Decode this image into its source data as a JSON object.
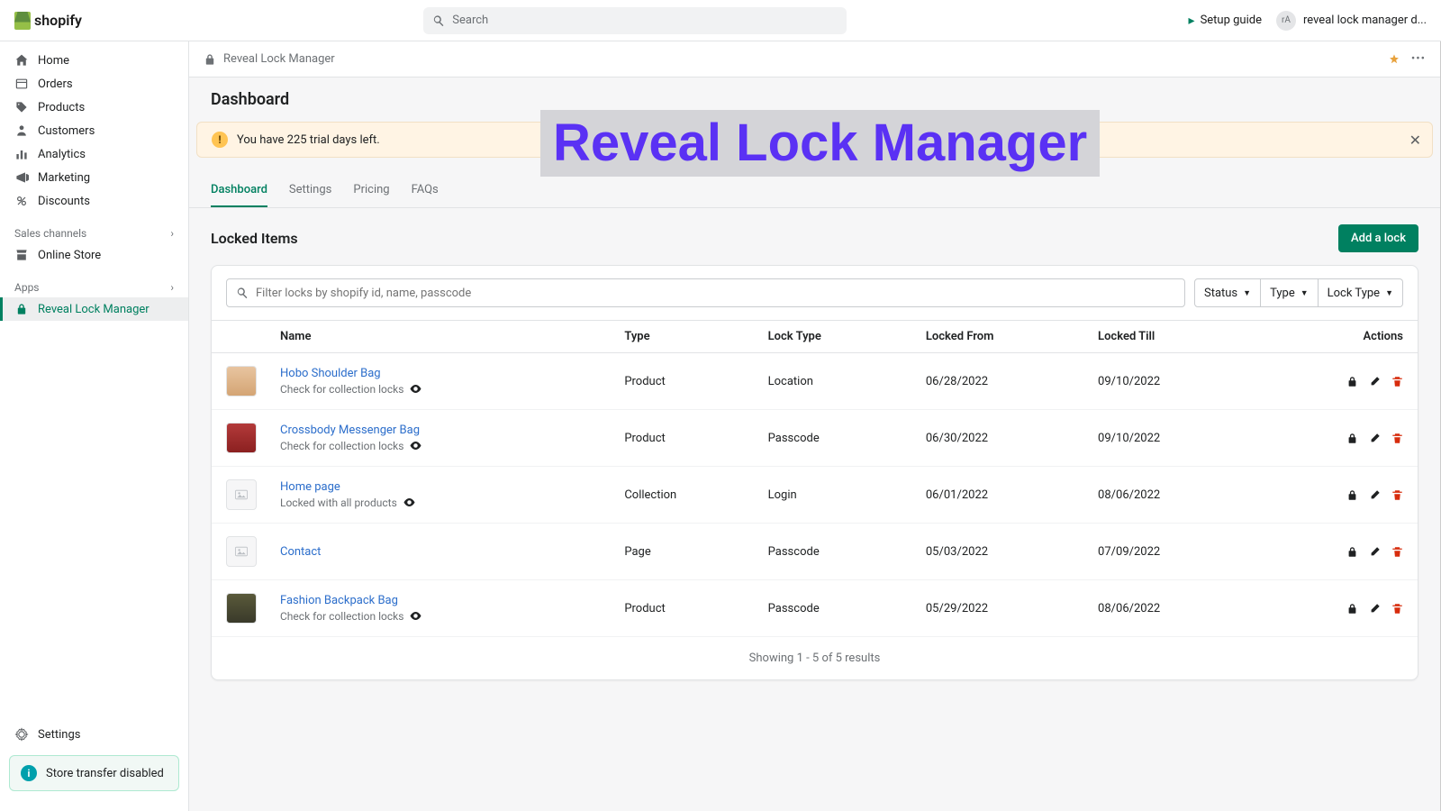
{
  "topbar": {
    "brand": "shopify",
    "search_placeholder": "Search",
    "setup_guide": "Setup guide",
    "user_initials": "rA",
    "user_name": "reveal lock manager d..."
  },
  "sidebar": {
    "items": [
      {
        "label": "Home"
      },
      {
        "label": "Orders"
      },
      {
        "label": "Products"
      },
      {
        "label": "Customers"
      },
      {
        "label": "Analytics"
      },
      {
        "label": "Marketing"
      },
      {
        "label": "Discounts"
      }
    ],
    "sales_channels_header": "Sales channels",
    "sales_channels": [
      {
        "label": "Online Store"
      }
    ],
    "apps_header": "Apps",
    "apps": [
      {
        "label": "Reveal Lock Manager"
      }
    ],
    "settings": "Settings",
    "transfer": "Store transfer disabled"
  },
  "app": {
    "name": "Reveal Lock Manager",
    "page_title": "Dashboard",
    "trial_text": "You have 225 trial days left.",
    "tabs": [
      {
        "label": "Dashboard",
        "active": true
      },
      {
        "label": "Settings"
      },
      {
        "label": "Pricing"
      },
      {
        "label": "FAQs"
      }
    ],
    "section_title": "Locked Items",
    "add_button": "Add a lock",
    "filter_placeholder": "Filter locks by shopify id, name, passcode",
    "filter_buttons": [
      {
        "label": "Status"
      },
      {
        "label": "Type"
      },
      {
        "label": "Lock Type"
      }
    ],
    "columns": {
      "name": "Name",
      "type": "Type",
      "locktype": "Lock Type",
      "from": "Locked From",
      "till": "Locked Till",
      "actions": "Actions"
    },
    "rows": [
      {
        "name": "Hobo Shoulder Bag",
        "sub": "Check for collection locks",
        "eye": true,
        "type": "Product",
        "locktype": "Location",
        "from": "06/28/2022",
        "till": "09/10/2022",
        "thumb": "bag1"
      },
      {
        "name": "Crossbody Messenger Bag",
        "sub": "Check for collection locks",
        "eye": true,
        "type": "Product",
        "locktype": "Passcode",
        "from": "06/30/2022",
        "till": "09/10/2022",
        "thumb": "bag2"
      },
      {
        "name": "Home page",
        "sub": "Locked with all products",
        "eye": true,
        "type": "Collection",
        "locktype": "Login",
        "from": "06/01/2022",
        "till": "08/06/2022",
        "thumb": "ph"
      },
      {
        "name": "Contact",
        "sub": "",
        "eye": false,
        "type": "Page",
        "locktype": "Passcode",
        "from": "05/03/2022",
        "till": "07/09/2022",
        "thumb": "ph"
      },
      {
        "name": "Fashion Backpack Bag",
        "sub": "Check for collection locks",
        "eye": true,
        "type": "Product",
        "locktype": "Passcode",
        "from": "05/29/2022",
        "till": "08/06/2022",
        "thumb": "bag3"
      }
    ],
    "pager": "Showing 1 - 5 of 5 results"
  },
  "overlay": "Reveal Lock Manager",
  "colors": {
    "primary": "#008060",
    "link": "#2c6ecb",
    "danger": "#d72c0d",
    "overlay_text": "#5a31f4",
    "overlay_bg": "#d4d4d8"
  }
}
